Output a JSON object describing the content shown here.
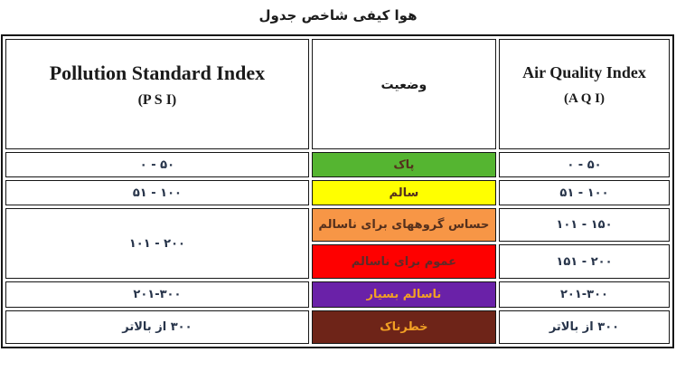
{
  "title": "جدول شاخص کیفی هوا",
  "table": {
    "headers": {
      "psi": {
        "line1": "Pollution Standard Index",
        "line2": "(P S I)"
      },
      "status": {
        "label": "وضعیت"
      },
      "aqi": {
        "line1": "Air Quality Index",
        "line2": "(A Q I)"
      }
    },
    "rows": [
      {
        "psi": "۰ - ۵۰",
        "status": "پاک",
        "aqi": "۰ - ۵۰",
        "bg": "#55b531",
        "fg": "#54301d"
      },
      {
        "psi": "۵۱ - ۱۰۰",
        "status": "سالم",
        "aqi": "۵۱ - ۱۰۰",
        "bg": "#ffff00",
        "fg": "#54301d"
      },
      {
        "psi": "۱۰۱ - ۲۰۰",
        "status": "ناسالم برای گروههای حساس",
        "aqi": "۱۰۱ - ۱۵۰",
        "bg": "#f79646",
        "fg": "#54301d"
      },
      {
        "status": "ناسالم برای عموم",
        "aqi": "۱۵۱ - ۲۰۰",
        "bg": "#fe0000",
        "fg": "#5e2a28"
      },
      {
        "psi": "۲۰۱-۳۰۰",
        "status": "بسیار ناسالم",
        "aqi": "۲۰۱-۳۰۰",
        "bg": "#6a21a8",
        "fg": "#f2a024"
      },
      {
        "psi": "بالاتر از ۳۰۰",
        "status": "خطرناک",
        "aqi": "بالاتر از ۳۰۰",
        "bg": "#6e2418",
        "fg": "#f2a024"
      }
    ],
    "number_color": "#27344a",
    "border_color": "#161616"
  }
}
